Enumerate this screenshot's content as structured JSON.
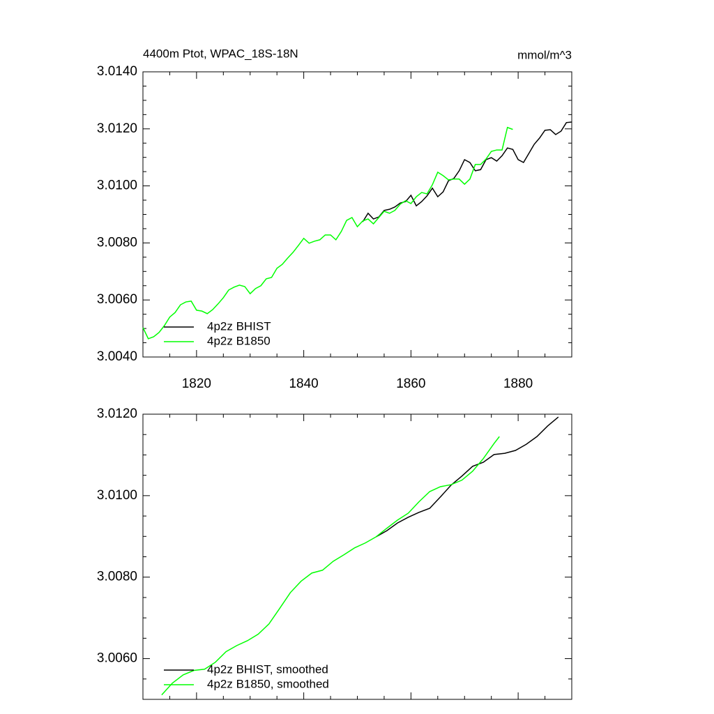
{
  "chart_data": [
    {
      "type": "line",
      "title": "4400m Ptot, WPAC_18S-18N",
      "units": "mmol/m^3",
      "xlim": [
        1810,
        1890
      ],
      "xticks": [
        1820,
        1840,
        1860,
        1880
      ],
      "ylim": [
        3.004,
        3.014
      ],
      "yticks": [
        {
          "value": 3.004,
          "label": "3.0040"
        },
        {
          "value": 3.006,
          "label": "3.0060"
        },
        {
          "value": 3.008,
          "label": "3.0080"
        },
        {
          "value": 3.01,
          "label": "3.0100"
        },
        {
          "value": 3.012,
          "label": "3.0120"
        },
        {
          "value": 3.014,
          "label": "3.0140"
        }
      ],
      "series": [
        {
          "name": "4p2z BHIST",
          "color": "#000000",
          "x": [
            1851,
            1852,
            1853,
            1854,
            1855,
            1856,
            1857,
            1858,
            1859,
            1860,
            1861,
            1862,
            1863,
            1864,
            1865,
            1866,
            1867,
            1868,
            1869,
            1870,
            1871,
            1872,
            1873,
            1874,
            1875,
            1876,
            1877,
            1878,
            1879,
            1880,
            1881,
            1882,
            1883,
            1884,
            1885,
            1886,
            1887,
            1888,
            1889,
            1890
          ],
          "values": [
            3.00874,
            3.00904,
            3.00884,
            3.00891,
            3.00914,
            3.00918,
            3.00926,
            3.0094,
            3.00945,
            3.00967,
            3.0093,
            3.00945,
            3.00965,
            3.00992,
            3.00962,
            3.00979,
            3.01018,
            3.01026,
            3.01053,
            3.01092,
            3.01082,
            3.01053,
            3.01057,
            3.01092,
            3.01099,
            3.01087,
            3.01106,
            3.01133,
            3.01128,
            3.01092,
            3.01082,
            3.01114,
            3.01146,
            3.01168,
            3.01195,
            3.01197,
            3.0118,
            3.01192,
            3.01222,
            3.01224
          ]
        },
        {
          "name": "4p2z B1850",
          "color": "#00ff00",
          "x": [
            1810,
            1811,
            1812,
            1813,
            1814,
            1815,
            1816,
            1817,
            1818,
            1819,
            1820,
            1821,
            1822,
            1823,
            1824,
            1825,
            1826,
            1827,
            1828,
            1829,
            1830,
            1831,
            1832,
            1833,
            1834,
            1835,
            1836,
            1837,
            1838,
            1839,
            1840,
            1841,
            1842,
            1843,
            1844,
            1845,
            1846,
            1847,
            1848,
            1849,
            1850,
            1851,
            1852,
            1853,
            1854,
            1855,
            1856,
            1857,
            1858,
            1859,
            1860,
            1861,
            1862,
            1863,
            1864,
            1865,
            1866,
            1867,
            1868,
            1869,
            1870,
            1871,
            1872,
            1873,
            1874,
            1875,
            1876,
            1877,
            1878,
            1879
          ],
          "values": [
            3.00503,
            3.00464,
            3.00471,
            3.00486,
            3.0051,
            3.0054,
            3.00556,
            3.00583,
            3.00593,
            3.00596,
            3.00564,
            3.00561,
            3.00552,
            3.00566,
            3.00586,
            3.00608,
            3.00635,
            3.00645,
            3.00652,
            3.00647,
            3.00622,
            3.0064,
            3.0065,
            3.00674,
            3.00679,
            3.00711,
            3.00725,
            3.00747,
            3.00767,
            3.00791,
            3.00816,
            3.00799,
            3.00806,
            3.00811,
            3.00828,
            3.00828,
            3.00811,
            3.0084,
            3.00879,
            3.00889,
            3.00857,
            3.00877,
            3.00884,
            3.00867,
            3.00889,
            3.00911,
            3.00904,
            3.00914,
            3.00936,
            3.00948,
            3.00938,
            3.00962,
            3.00977,
            3.00972,
            3.01004,
            3.01048,
            3.01036,
            3.01021,
            3.01024,
            3.01024,
            3.01006,
            3.01024,
            3.01075,
            3.01075,
            3.01094,
            3.01121,
            3.01126,
            3.01126,
            3.01205,
            3.01198
          ]
        }
      ]
    },
    {
      "type": "line",
      "xlim": [
        1810,
        1890
      ],
      "xticks": [
        1820,
        1840,
        1860,
        1880
      ],
      "ylim": [
        3.005,
        3.012
      ],
      "yticks": [
        {
          "value": 3.006,
          "label": "3.0060"
        },
        {
          "value": 3.008,
          "label": "3.0080"
        },
        {
          "value": 3.01,
          "label": "3.0100"
        },
        {
          "value": 3.012,
          "label": "3.0120"
        }
      ],
      "series": [
        {
          "name": "4p2z BHIST, smoothed",
          "color": "#000000",
          "x": [
            1853.5,
            1855.5,
            1857.5,
            1859.5,
            1861.5,
            1863.5,
            1865.5,
            1867.5,
            1869.5,
            1871.5,
            1873.5,
            1875.5,
            1877.5,
            1879.5,
            1881.5,
            1883.5,
            1885.5,
            1887.5
          ],
          "values": [
            3.00899,
            3.00914,
            3.00933,
            3.00947,
            3.00959,
            3.00969,
            3.00997,
            3.01026,
            3.01048,
            3.01072,
            3.01082,
            3.01101,
            3.01104,
            3.01111,
            3.01126,
            3.01145,
            3.01171,
            3.01193
          ]
        },
        {
          "name": "4p2z B1850, smoothed",
          "color": "#00ff00",
          "x": [
            1813.5,
            1815.5,
            1817.5,
            1819.5,
            1821.5,
            1823.5,
            1825.5,
            1827.5,
            1829.5,
            1831.5,
            1833.5,
            1835.5,
            1837.5,
            1839.5,
            1841.5,
            1843.5,
            1845.5,
            1847.5,
            1849.5,
            1851.5,
            1853.5,
            1855.5,
            1857.5,
            1859.5,
            1861.5,
            1863.5,
            1865.5,
            1867.5,
            1869.5,
            1871.5,
            1873.5,
            1875.5,
            1876.5
          ],
          "values": [
            3.00511,
            3.0054,
            3.0056,
            3.00571,
            3.00574,
            3.00591,
            3.00617,
            3.00632,
            3.00644,
            3.0066,
            3.00685,
            3.00723,
            3.00762,
            3.0079,
            3.0081,
            3.00817,
            3.00839,
            3.00855,
            3.00872,
            3.00884,
            3.00899,
            3.0092,
            3.0094,
            3.00957,
            3.00985,
            3.0101,
            3.01022,
            3.01027,
            3.01038,
            3.0106,
            3.01091,
            3.01128,
            3.01145
          ]
        }
      ]
    }
  ]
}
